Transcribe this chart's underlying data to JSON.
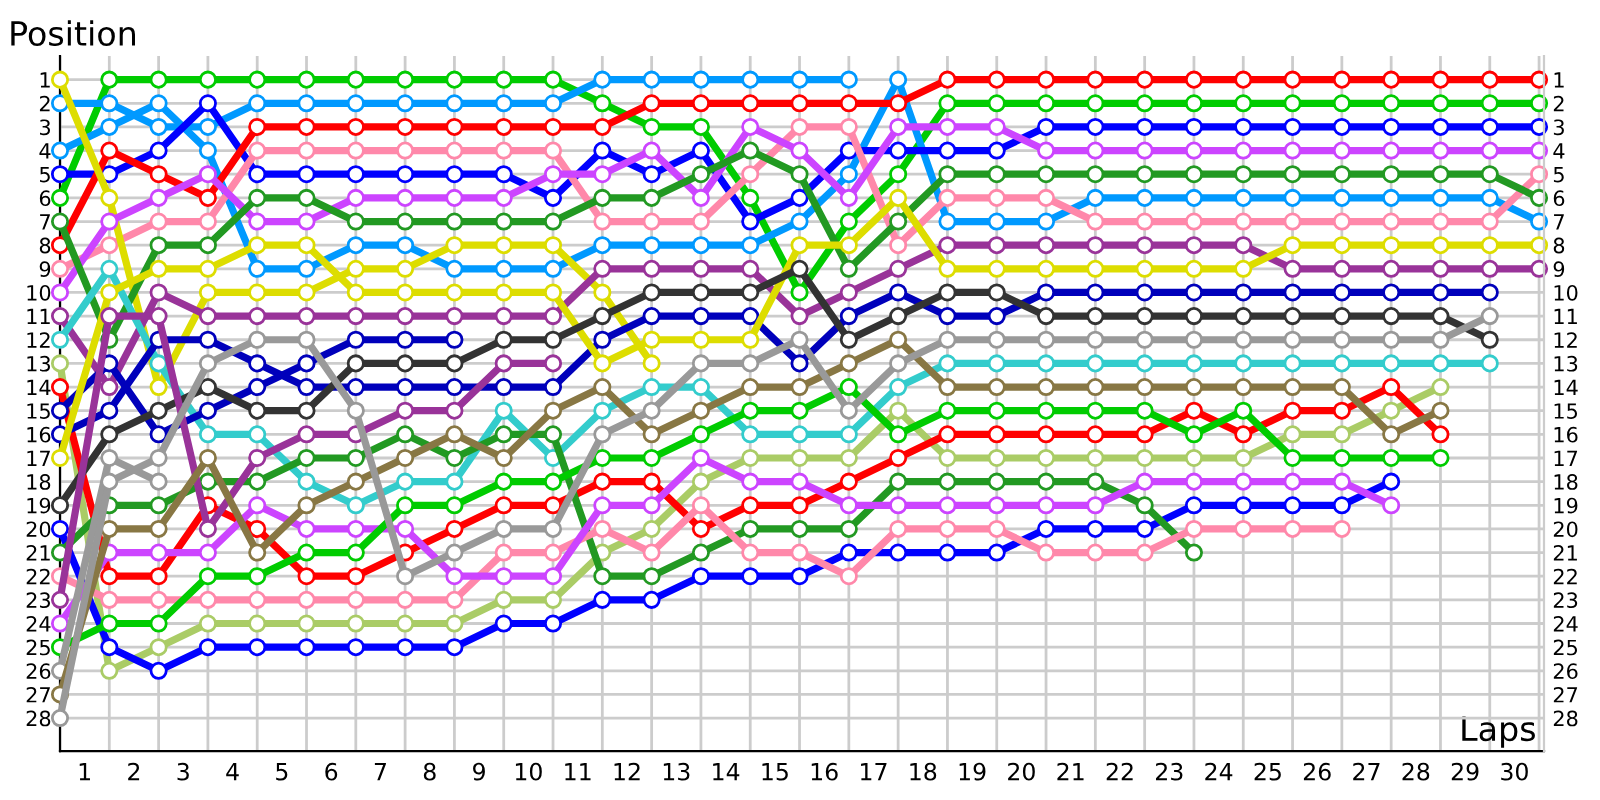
{
  "chart_data": {
    "type": "line",
    "xlabel": "Laps",
    "ylabel": "Position",
    "x": [
      0,
      1,
      2,
      3,
      4,
      5,
      6,
      7,
      8,
      9,
      10,
      11,
      12,
      13,
      14,
      15,
      16,
      17,
      18,
      19,
      20,
      21,
      22,
      23,
      24,
      25,
      26,
      27,
      28,
      29,
      30
    ],
    "xlim": [
      0,
      30.1
    ],
    "xticks": [
      {
        "value": 0,
        "label": null
      },
      {
        "value": 0.5,
        "label": "1"
      },
      {
        "value": 1,
        "label": null
      },
      {
        "value": 1.5,
        "label": "2"
      },
      {
        "value": 2,
        "label": null
      },
      {
        "value": 2.5,
        "label": "3"
      },
      {
        "value": 3,
        "label": null
      },
      {
        "value": 3.5,
        "label": "4"
      },
      {
        "value": 4,
        "label": null
      },
      {
        "value": 4.5,
        "label": "5"
      },
      {
        "value": 5,
        "label": null
      },
      {
        "value": 5.5,
        "label": "6"
      },
      {
        "value": 6,
        "label": null
      },
      {
        "value": 6.5,
        "label": "7"
      },
      {
        "value": 7,
        "label": null
      },
      {
        "value": 7.5,
        "label": "8"
      },
      {
        "value": 8,
        "label": null
      },
      {
        "value": 8.5,
        "label": "9"
      },
      {
        "value": 9,
        "label": null
      },
      {
        "value": 9.5,
        "label": "10"
      },
      {
        "value": 10,
        "label": null
      },
      {
        "value": 10.5,
        "label": "11"
      },
      {
        "value": 11,
        "label": null
      },
      {
        "value": 11.5,
        "label": "12"
      },
      {
        "value": 12,
        "label": null
      },
      {
        "value": 12.5,
        "label": "13"
      },
      {
        "value": 13,
        "label": null
      },
      {
        "value": 13.5,
        "label": "14"
      },
      {
        "value": 14,
        "label": null
      },
      {
        "value": 14.5,
        "label": "15"
      },
      {
        "value": 15,
        "label": null
      },
      {
        "value": 15.5,
        "label": "16"
      },
      {
        "value": 16,
        "label": null
      },
      {
        "value": 16.5,
        "label": "17"
      },
      {
        "value": 17,
        "label": null
      },
      {
        "value": 17.5,
        "label": "18"
      },
      {
        "value": 18,
        "label": null
      },
      {
        "value": 18.5,
        "label": "19"
      },
      {
        "value": 19,
        "label": null
      },
      {
        "value": 19.5,
        "label": "20"
      },
      {
        "value": 20,
        "label": null
      },
      {
        "value": 20.5,
        "label": "21"
      },
      {
        "value": 21,
        "label": null
      },
      {
        "value": 21.5,
        "label": "22"
      },
      {
        "value": 22,
        "label": null
      },
      {
        "value": 22.5,
        "label": "23"
      },
      {
        "value": 23,
        "label": null
      },
      {
        "value": 23.5,
        "label": "24"
      },
      {
        "value": 24,
        "label": null
      },
      {
        "value": 24.5,
        "label": "25"
      },
      {
        "value": 25,
        "label": null
      },
      {
        "value": 25.5,
        "label": "26"
      },
      {
        "value": 26,
        "label": null
      },
      {
        "value": 26.5,
        "label": "27"
      },
      {
        "value": 27,
        "label": null
      },
      {
        "value": 27.5,
        "label": "28"
      },
      {
        "value": 28,
        "label": null
      },
      {
        "value": 28.5,
        "label": "29"
      },
      {
        "value": 29,
        "label": null
      },
      {
        "value": 29.5,
        "label": "30"
      },
      {
        "value": 30,
        "label": null
      }
    ],
    "ylim": [
      29.4,
      0
    ],
    "yticks": [
      1,
      2,
      3,
      4,
      5,
      6,
      7,
      8,
      9,
      10,
      11,
      12,
      13,
      14,
      15,
      16,
      17,
      18,
      19,
      20,
      21,
      22,
      23,
      24,
      25,
      26,
      27,
      28
    ],
    "y2lim": [
      29.4,
      0
    ],
    "y2ticks": [
      1,
      2,
      3,
      4,
      5,
      6,
      7,
      8,
      9,
      10,
      11,
      12,
      13,
      14,
      15,
      16,
      17,
      18,
      19,
      20,
      21,
      22,
      23,
      24,
      25,
      26,
      27,
      28
    ],
    "grid": true,
    "legend": false,
    "marker": "circle",
    "line_style": "solid",
    "series": [
      {
        "color": "#00cc00",
        "values": [
          6,
          1,
          1,
          1,
          1,
          1,
          1,
          1,
          1,
          1,
          1,
          2,
          3,
          3,
          6,
          10,
          7,
          5,
          2,
          2,
          2,
          2,
          2,
          2,
          2,
          2,
          2,
          2,
          2,
          2,
          2
        ]
      },
      {
        "color": "#0099ff",
        "values": [
          2,
          2,
          3,
          3,
          2,
          2,
          2,
          2,
          2,
          2,
          2,
          1,
          1,
          1,
          1,
          1,
          1,
          null,
          null,
          null,
          null,
          null,
          null,
          null,
          null,
          null,
          null,
          null,
          null,
          null,
          null
        ]
      },
      {
        "color": "#0099ff",
        "values": [
          4,
          3,
          2,
          4,
          9,
          9,
          8,
          8,
          9,
          9,
          9,
          8,
          8,
          8,
          8,
          7,
          5,
          1,
          7,
          7,
          7,
          6,
          6,
          6,
          6,
          6,
          6,
          6,
          6,
          6,
          7
        ]
      },
      {
        "color": "#0000ff",
        "values": [
          5,
          5,
          4,
          2,
          5,
          5,
          5,
          5,
          5,
          5,
          6,
          4,
          5,
          4,
          7,
          6,
          4,
          4,
          4,
          4,
          3,
          3,
          3,
          3,
          3,
          3,
          3,
          3,
          3,
          3,
          3
        ]
      },
      {
        "color": "#ff0000",
        "values": [
          8,
          4,
          5,
          6,
          3,
          3,
          3,
          3,
          3,
          3,
          3,
          3,
          2,
          2,
          2,
          2,
          2,
          2,
          1,
          1,
          1,
          1,
          1,
          1,
          1,
          1,
          1,
          1,
          1,
          1,
          1
        ]
      },
      {
        "color": "#ff88aa",
        "values": [
          9,
          8,
          7,
          7,
          4,
          4,
          4,
          4,
          4,
          4,
          4,
          7,
          7,
          7,
          5,
          3,
          3,
          8,
          6,
          6,
          6,
          7,
          7,
          7,
          7,
          7,
          7,
          7,
          7,
          7,
          5
        ]
      },
      {
        "color": "#dddd00",
        "values": [
          1,
          6,
          14,
          10,
          10,
          10,
          9,
          9,
          8,
          8,
          8,
          10,
          13,
          null,
          null,
          null,
          null,
          null,
          null,
          null,
          null,
          null,
          null,
          null,
          null,
          null,
          null,
          null,
          null,
          null,
          null
        ]
      },
      {
        "color": "#cc44ff",
        "values": [
          10,
          7,
          6,
          5,
          7,
          7,
          6,
          6,
          6,
          6,
          5,
          5,
          4,
          6,
          3,
          4,
          6,
          3,
          3,
          3,
          4,
          4,
          4,
          4,
          4,
          4,
          4,
          4,
          4,
          4,
          4
        ]
      },
      {
        "color": "#229922",
        "values": [
          7,
          12,
          8,
          8,
          6,
          6,
          7,
          7,
          7,
          7,
          7,
          6,
          6,
          5,
          4,
          5,
          9,
          7,
          5,
          5,
          5,
          5,
          5,
          5,
          5,
          5,
          5,
          5,
          5,
          5,
          6
        ]
      },
      {
        "color": "#993399",
        "values": [
          11,
          14,
          10,
          11,
          11,
          11,
          11,
          11,
          11,
          11,
          11,
          9,
          9,
          9,
          9,
          11,
          10,
          9,
          8,
          8,
          8,
          8,
          8,
          8,
          8,
          9,
          9,
          9,
          9,
          9,
          9
        ]
      },
      {
        "color": "#33cccc",
        "values": [
          12,
          9,
          13,
          16,
          16,
          18,
          19,
          18,
          18,
          15,
          17,
          15,
          14,
          14,
          16,
          16,
          16,
          14,
          13,
          13,
          13,
          13,
          13,
          13,
          13,
          13,
          13,
          13,
          13,
          13,
          null
        ]
      },
      {
        "color": "#aacc66",
        "values": [
          13,
          26,
          25,
          24,
          24,
          24,
          24,
          24,
          24,
          23,
          23,
          21,
          20,
          18,
          17,
          17,
          17,
          15,
          17,
          17,
          17,
          17,
          17,
          17,
          17,
          16,
          16,
          15,
          14,
          null,
          null
        ]
      },
      {
        "color": "#ff0000",
        "values": [
          14,
          22,
          22,
          19,
          20,
          22,
          22,
          21,
          20,
          19,
          19,
          18,
          18,
          20,
          19,
          19,
          18,
          17,
          16,
          16,
          16,
          16,
          16,
          15,
          16,
          15,
          15,
          14,
          16,
          null,
          null
        ]
      },
      {
        "color": "#0000bb",
        "values": [
          15,
          13,
          16,
          15,
          14,
          13,
          12,
          12,
          12,
          null,
          null,
          null,
          null,
          null,
          null,
          null,
          null,
          null,
          null,
          null,
          null,
          null,
          null,
          null,
          null,
          null,
          null,
          null,
          null,
          null,
          null
        ]
      },
      {
        "color": "#0000bb",
        "values": [
          16,
          15,
          12,
          12,
          13,
          14,
          14,
          14,
          14,
          14,
          14,
          12,
          11,
          11,
          11,
          13,
          11,
          10,
          11,
          11,
          10,
          10,
          10,
          10,
          10,
          10,
          10,
          10,
          10,
          10,
          null
        ]
      },
      {
        "color": "#dddd00",
        "values": [
          17,
          10,
          9,
          9,
          8,
          8,
          10,
          10,
          10,
          10,
          10,
          13,
          12,
          12,
          12,
          8,
          8,
          6,
          9,
          9,
          9,
          9,
          9,
          9,
          9,
          8,
          8,
          8,
          8,
          8,
          8
        ]
      },
      {
        "color": "#333333",
        "values": [
          19,
          16,
          15,
          14,
          15,
          15,
          13,
          13,
          13,
          12,
          12,
          11,
          10,
          10,
          10,
          9,
          12,
          11,
          10,
          10,
          11,
          11,
          11,
          11,
          11,
          11,
          11,
          11,
          11,
          12,
          null
        ]
      },
      {
        "color": "#0000ff",
        "values": [
          20,
          25,
          26,
          25,
          25,
          25,
          25,
          25,
          25,
          24,
          24,
          23,
          23,
          22,
          22,
          22,
          21,
          21,
          21,
          21,
          20,
          20,
          20,
          19,
          19,
          19,
          19,
          18,
          null,
          null,
          null
        ]
      },
      {
        "color": "#229922",
        "values": [
          21,
          19,
          19,
          18,
          18,
          17,
          17,
          16,
          17,
          16,
          16,
          22,
          22,
          21,
          20,
          20,
          20,
          18,
          18,
          18,
          18,
          18,
          19,
          21,
          null,
          null,
          null,
          null,
          null,
          null,
          null
        ]
      },
      {
        "color": "#ff88aa",
        "values": [
          22,
          23,
          23,
          23,
          23,
          23,
          23,
          23,
          23,
          21,
          21,
          20,
          21,
          19,
          21,
          21,
          22,
          20,
          20,
          20,
          21,
          21,
          21,
          20,
          20,
          20,
          20,
          null,
          null,
          null,
          null
        ]
      },
      {
        "color": "#993399",
        "values": [
          23,
          11,
          11,
          20,
          17,
          16,
          16,
          15,
          15,
          13,
          13,
          null,
          null,
          null,
          null,
          null,
          null,
          null,
          null,
          null,
          null,
          null,
          null,
          null,
          null,
          null,
          null,
          null,
          null,
          null,
          null
        ]
      },
      {
        "color": "#cc44ff",
        "values": [
          24,
          21,
          21,
          21,
          19,
          20,
          20,
          20,
          22,
          22,
          22,
          19,
          19,
          17,
          18,
          18,
          19,
          19,
          19,
          19,
          19,
          19,
          18,
          18,
          18,
          18,
          18,
          19,
          null,
          null,
          null
        ]
      },
      {
        "color": "#00cc00",
        "values": [
          25,
          24,
          24,
          22,
          22,
          21,
          21,
          19,
          19,
          18,
          18,
          17,
          17,
          16,
          15,
          15,
          14,
          16,
          15,
          15,
          15,
          15,
          15,
          16,
          15,
          17,
          17,
          17,
          17,
          null,
          null
        ]
      },
      {
        "color": "#999999",
        "values": [
          26,
          17,
          18,
          null,
          null,
          null,
          null,
          null,
          null,
          null,
          null,
          null,
          null,
          null,
          null,
          null,
          null,
          null,
          null,
          null,
          null,
          null,
          null,
          null,
          null,
          null,
          null,
          null,
          null,
          null,
          null
        ]
      },
      {
        "color": "#887744",
        "values": [
          27,
          20,
          20,
          17,
          21,
          19,
          18,
          17,
          16,
          17,
          15,
          14,
          16,
          15,
          14,
          14,
          13,
          12,
          14,
          14,
          14,
          14,
          14,
          14,
          14,
          14,
          14,
          16,
          15,
          null,
          null
        ]
      },
      {
        "color": "#999999",
        "values": [
          28,
          18,
          17,
          13,
          12,
          12,
          15,
          22,
          21,
          20,
          20,
          16,
          15,
          13,
          13,
          12,
          15,
          13,
          12,
          12,
          12,
          12,
          12,
          12,
          12,
          12,
          12,
          12,
          12,
          11,
          null
        ]
      }
    ]
  }
}
